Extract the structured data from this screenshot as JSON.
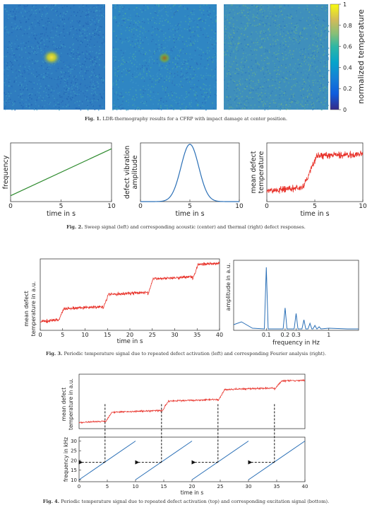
{
  "fig1": {
    "colorbar": {
      "label": "normalized temperature",
      "ticks": [
        "0",
        "0.2",
        "0.4",
        "0.6",
        "0.8",
        "1"
      ]
    },
    "caption_num": "Fig. 1.",
    "caption_text": "LDR-thermography results for a CFRP with impact damage at center position."
  },
  "fig2": {
    "caption_num": "Fig. 2.",
    "caption_text": "Sweep signal (left) and corresponding acoustic (center) and thermal (right) defect responses."
  },
  "fig3": {
    "caption_num": "Fig. 3.",
    "caption_text": "Periodic temperature signal due to repeated defect activation (left) and corresponding Fourier analysis (right)."
  },
  "fig4": {
    "caption_num": "Fig. 4.",
    "caption_text": "Periodic temperature signal due to repeated defect activation (top) and corresponding excitation signal (bottom)."
  },
  "chart_data": [
    {
      "id": "fig2-left",
      "type": "line",
      "xlabel": "time in s",
      "ylabel": "frequency",
      "xticks": [
        0,
        5,
        10
      ],
      "xlim": [
        0,
        10
      ],
      "series": [
        {
          "x": [
            0,
            10
          ],
          "y": [
            0.1,
            0.9
          ],
          "color": "#2e8b2e"
        }
      ]
    },
    {
      "id": "fig2-center",
      "type": "line",
      "xlabel": "time in s",
      "ylabel": "defect vibration amplitude",
      "xticks": [
        0,
        5,
        10
      ],
      "xlim": [
        0,
        10
      ],
      "series": [
        {
          "shape": "gaussian",
          "center": 5,
          "sigma": 0.9,
          "peak": 1,
          "color": "#2a6fb6"
        }
      ]
    },
    {
      "id": "fig2-right",
      "type": "line",
      "xlabel": "time in s",
      "ylabel": "mean defect temperature",
      "xticks": [
        0,
        5,
        10
      ],
      "xlim": [
        0,
        10
      ],
      "series": [
        {
          "shape": "noisy-step",
          "step_start": 3.8,
          "step_end": 5.2,
          "low": 0.18,
          "high": 0.78,
          "color": "#e8322a"
        }
      ]
    },
    {
      "id": "fig3-left",
      "type": "line",
      "xlabel": "time in s",
      "ylabel": "mean defect temperature in a.u.",
      "xticks": [
        0,
        5,
        10,
        15,
        20,
        25,
        30,
        35,
        40
      ],
      "xlim": [
        0,
        40
      ],
      "series": [
        {
          "shape": "noisy-staircase",
          "steps_at": [
            4,
            14,
            24,
            34
          ],
          "levels": [
            0.12,
            0.3,
            0.5,
            0.72,
            0.92
          ],
          "color": "#e8322a"
        }
      ]
    },
    {
      "id": "fig3-right",
      "type": "line",
      "xlabel": "frequency in Hz",
      "ylabel": "amplitude in a.u.",
      "xticks": [
        0.1,
        0.2,
        0.3,
        1
      ],
      "xscale": "log",
      "series": [
        {
          "peaks": [
            [
              0.1,
              0.9
            ],
            [
              0.2,
              0.32
            ],
            [
              0.3,
              0.24
            ],
            [
              0.4,
              0.15
            ],
            [
              0.5,
              0.1
            ],
            [
              0.6,
              0.07
            ],
            [
              0.7,
              0.05
            ]
          ],
          "color": "#2a6fb6"
        }
      ]
    },
    {
      "id": "fig4-top",
      "type": "line",
      "ylabel": "mean defect temperature in a.u.",
      "xlim": [
        0,
        40
      ],
      "series": [
        {
          "shape": "noisy-staircase",
          "steps_at": [
            4.6,
            14.6,
            24.6,
            34.6
          ],
          "levels": [
            0.12,
            0.33,
            0.55,
            0.78,
            0.95
          ],
          "color": "#e8322a"
        }
      ]
    },
    {
      "id": "fig4-bottom",
      "type": "line",
      "xlabel": "time in s",
      "ylabel": "frequency in kHz",
      "xticks": [
        0,
        5,
        10,
        15,
        20,
        25,
        30,
        35,
        40
      ],
      "yticks": [
        10,
        15,
        20,
        25,
        30
      ],
      "xlim": [
        0,
        40
      ],
      "ylim": [
        9,
        32
      ],
      "series": [
        {
          "shape": "sawtooth",
          "period": 10,
          "min": 10,
          "max": 30,
          "color": "#2a6fb6"
        }
      ],
      "markers": [
        {
          "t": 4.6,
          "f": 19
        },
        {
          "t": 14.6,
          "f": 19
        },
        {
          "t": 24.6,
          "f": 19
        },
        {
          "t": 34.6,
          "f": 19
        }
      ]
    }
  ]
}
